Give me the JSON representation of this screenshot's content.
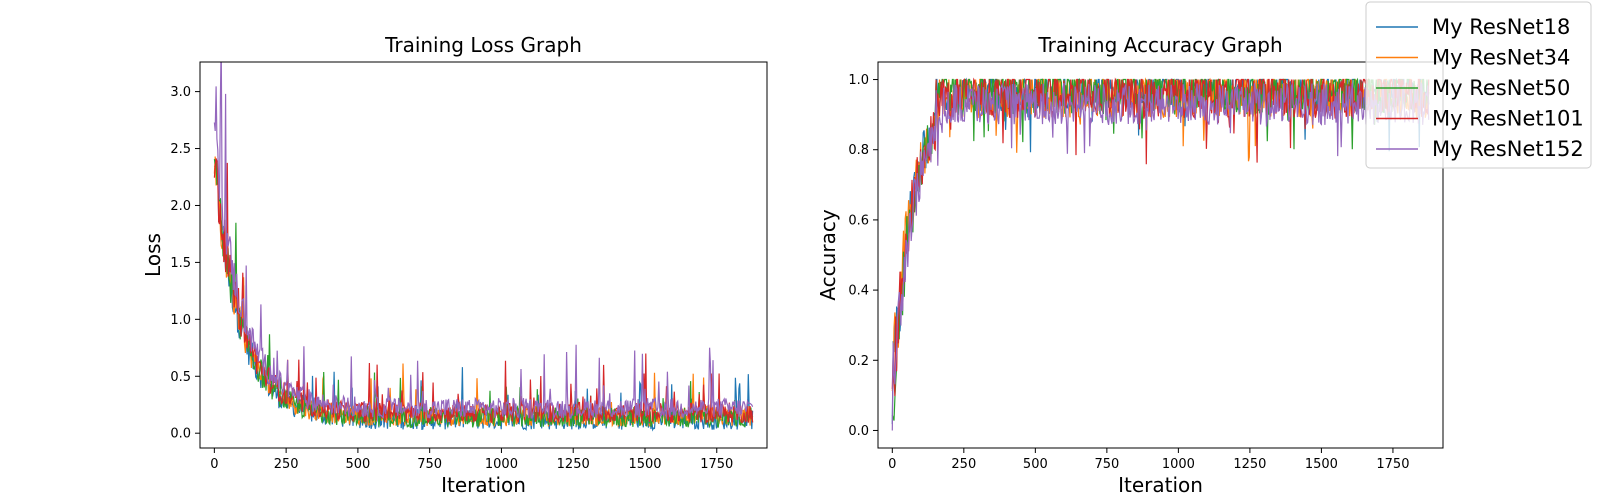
{
  "chart_data": [
    {
      "type": "line",
      "title": "Training Loss Graph",
      "xlabel": "Iteration",
      "ylabel": "Loss",
      "xlim": [
        -50,
        1925
      ],
      "ylim": [
        -0.13,
        3.26
      ],
      "xticks": [
        0,
        250,
        500,
        750,
        1000,
        1250,
        1500,
        1750
      ],
      "yticks": [
        0.0,
        0.5,
        1.0,
        1.5,
        2.0,
        2.5,
        3.0
      ],
      "grid": false,
      "series": [
        {
          "name": "My ResNet18",
          "x_start": 0,
          "x_end": 1874,
          "start_value": 2.3,
          "level_at_end": 0.12,
          "noise_band_late": 0.4,
          "max_spike": 1.16
        },
        {
          "name": "My ResNet34",
          "x_start": 0,
          "x_end": 1874,
          "start_value": 2.3,
          "level_at_end": 0.15,
          "noise_band_late": 0.4,
          "max_spike": 2.1
        },
        {
          "name": "My ResNet50",
          "x_start": 0,
          "x_end": 1874,
          "start_value": 2.3,
          "level_at_end": 0.14,
          "noise_band_late": 0.45,
          "max_spike": 0.85
        },
        {
          "name": "My ResNet101",
          "x_start": 0,
          "x_end": 1874,
          "start_value": 2.35,
          "level_at_end": 0.18,
          "noise_band_late": 0.45,
          "max_spike": 1.03
        },
        {
          "name": "My ResNet152",
          "x_start": 0,
          "x_end": 1874,
          "start_value": 2.6,
          "level_at_end": 0.22,
          "noise_band_late": 0.5,
          "max_spike": 3.1
        }
      ]
    },
    {
      "type": "line",
      "title": "Training Accuracy Graph",
      "xlabel": "Iteration",
      "ylabel": "Accuracy",
      "xlim": [
        -50,
        1925
      ],
      "ylim": [
        -0.05,
        1.05
      ],
      "xticks": [
        0,
        250,
        500,
        750,
        1000,
        1250,
        1500,
        1750
      ],
      "yticks": [
        0.0,
        0.2,
        0.4,
        0.6,
        0.8,
        1.0
      ],
      "grid": false,
      "legend_placement": "top-right",
      "series": [
        {
          "name": "My ResNet18",
          "x_start": 0,
          "x_end": 1874,
          "start_value": 0.1,
          "plateau": 0.97,
          "noise_band": 0.12
        },
        {
          "name": "My ResNet34",
          "x_start": 0,
          "x_end": 1874,
          "start_value": 0.12,
          "plateau": 0.96,
          "noise_band": 0.14
        },
        {
          "name": "My ResNet50",
          "x_start": 0,
          "x_end": 1874,
          "start_value": 0.05,
          "plateau": 0.97,
          "noise_band": 0.14
        },
        {
          "name": "My ResNet101",
          "x_start": 0,
          "x_end": 1874,
          "start_value": 0.1,
          "plateau": 0.96,
          "noise_band": 0.14
        },
        {
          "name": "My ResNet152",
          "x_start": 0,
          "x_end": 1874,
          "start_value": 0.1,
          "plateau": 0.93,
          "noise_band": 0.12
        }
      ]
    }
  ],
  "colors": {
    "My ResNet18": "#1f77b4",
    "My ResNet34": "#ff7f0e",
    "My ResNet50": "#2ca02c",
    "My ResNet101": "#d62728",
    "My ResNet152": "#9467bd"
  }
}
